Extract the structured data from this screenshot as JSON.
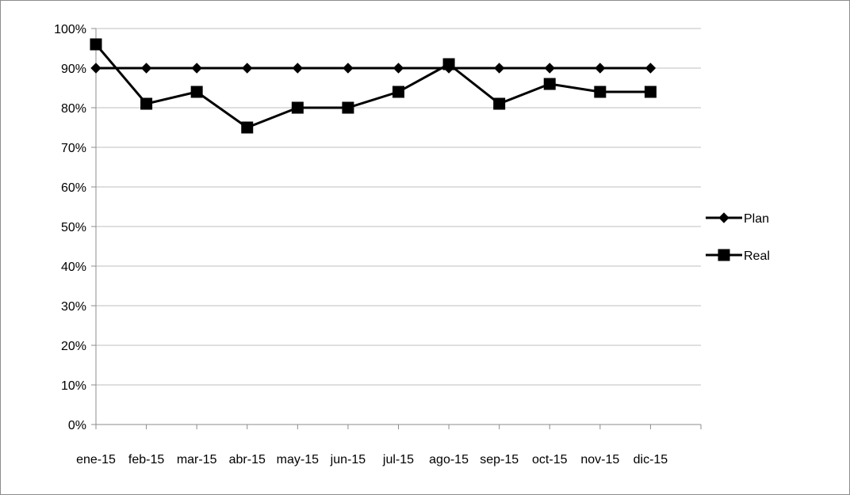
{
  "chart_data": {
    "type": "line",
    "categories": [
      "ene-15",
      "feb-15",
      "mar-15",
      "abr-15",
      "may-15",
      "jun-15",
      "jul-15",
      "ago-15",
      "sep-15",
      "oct-15",
      "nov-15",
      "dic-15"
    ],
    "series": [
      {
        "name": "Plan",
        "marker": "diamond",
        "color": "#000000",
        "values": [
          90,
          90,
          90,
          90,
          90,
          90,
          90,
          90,
          90,
          90,
          90,
          90
        ]
      },
      {
        "name": "Real",
        "marker": "square",
        "color": "#000000",
        "values": [
          96,
          81,
          84,
          75,
          80,
          80,
          84,
          91,
          81,
          86,
          84,
          84
        ]
      }
    ],
    "y_ticks": [
      "0%",
      "10%",
      "20%",
      "30%",
      "40%",
      "50%",
      "60%",
      "70%",
      "80%",
      "90%",
      "100%"
    ],
    "ylim": [
      0,
      100
    ],
    "y_unit": "%",
    "grid": "horizontal",
    "legend_position": "right",
    "gridline_color": "#bfbfbf",
    "axis_color": "#8c8c8c"
  }
}
